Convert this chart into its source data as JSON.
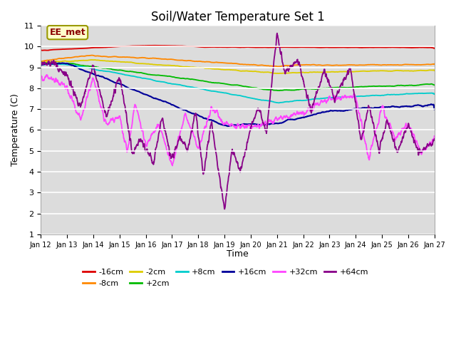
{
  "title": "Soil/Water Temperature Set 1",
  "xlabel": "Time",
  "ylabel": "Temperature (C)",
  "ylim": [
    1.0,
    11.0
  ],
  "yticks": [
    1.0,
    2.0,
    3.0,
    4.0,
    5.0,
    6.0,
    7.0,
    8.0,
    9.0,
    10.0,
    11.0
  ],
  "x_tick_labels": [
    "Jan 12",
    "Jan 13",
    "Jan 14",
    "Jan 15",
    "Jan 16",
    "Jan 17",
    "Jan 18",
    "Jan 19",
    "Jan 20",
    "Jan 21",
    "Jan 22",
    "Jan 23",
    "Jan 24",
    "Jan 25",
    "Jan 26",
    "Jan 27"
  ],
  "series": [
    {
      "label": "-16cm",
      "color": "#dd0000",
      "lw": 1.3
    },
    {
      "label": "-8cm",
      "color": "#ff8800",
      "lw": 1.3
    },
    {
      "label": "-2cm",
      "color": "#ddcc00",
      "lw": 1.3
    },
    {
      "label": "+2cm",
      "color": "#00bb00",
      "lw": 1.3
    },
    {
      "label": "+8cm",
      "color": "#00cccc",
      "lw": 1.3
    },
    {
      "label": "+16cm",
      "color": "#000099",
      "lw": 1.5
    },
    {
      "label": "+32cm",
      "color": "#ff44ff",
      "lw": 1.3
    },
    {
      "label": "+64cm",
      "color": "#880088",
      "lw": 1.3
    }
  ],
  "annotation_text": "EE_met",
  "plot_bg_color": "#dcdcdc",
  "fig_bg_color": "#ffffff",
  "grid_color": "#ffffff",
  "title_fontsize": 12,
  "tick_fontsize": 8,
  "label_fontsize": 9
}
